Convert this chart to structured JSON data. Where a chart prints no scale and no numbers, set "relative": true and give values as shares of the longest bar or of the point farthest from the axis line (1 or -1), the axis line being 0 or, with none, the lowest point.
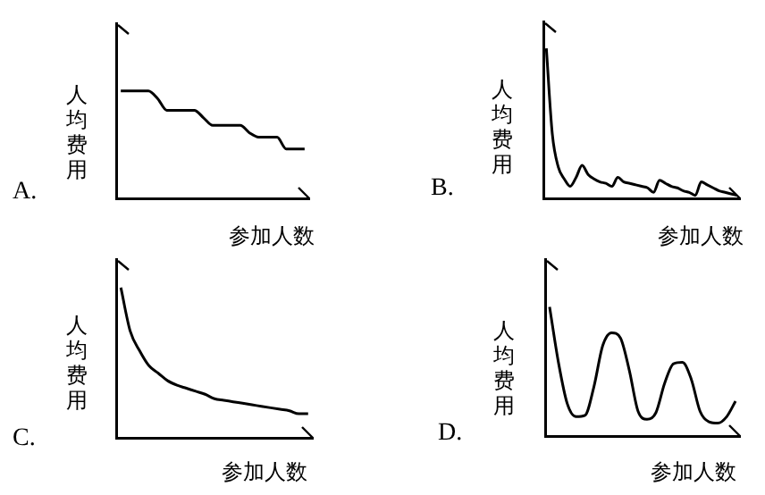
{
  "chart_data": [
    {
      "type": "line",
      "xlabel": "参加人数",
      "ylabel": "人均费用",
      "annotations": [
        "A."
      ],
      "relative": true,
      "color": "#000000",
      "categories": [
        null,
        null,
        null,
        null,
        null,
        null,
        null,
        null,
        null,
        null,
        null,
        null,
        null,
        null,
        null,
        null,
        null,
        null,
        null,
        null,
        null
      ],
      "values": [
        1,
        1,
        1,
        1,
        0.93,
        0.82,
        0.82,
        0.82,
        0.82,
        0.75,
        0.68,
        0.68,
        0.68,
        0.68,
        0.61,
        0.57,
        0.57,
        0.57,
        0.46,
        0.46,
        0.46
      ]
    },
    {
      "type": "line",
      "xlabel": "参加人数",
      "ylabel": "人均费用",
      "annotations": [
        "B."
      ],
      "relative": true,
      "color": "#000000",
      "categories": [
        null,
        null,
        null,
        null,
        null,
        null,
        null,
        null,
        null,
        null,
        null,
        null,
        null,
        null,
        null,
        null,
        null,
        null,
        null,
        null,
        null,
        null,
        null,
        null,
        null,
        null,
        null,
        null,
        null,
        null,
        null,
        null,
        null
      ],
      "values": [
        1,
        0.43,
        0.21,
        0.13,
        0.08,
        0.14,
        0.22,
        0.16,
        0.13,
        0.11,
        0.1,
        0.08,
        0.14,
        0.11,
        0.1,
        0.09,
        0.08,
        0.07,
        0.04,
        0.12,
        0.1,
        0.08,
        0.07,
        0.05,
        0.04,
        0.02,
        0.11,
        0.09,
        0.07,
        0.05,
        0.04,
        0.03,
        0.02
      ]
    },
    {
      "type": "line",
      "xlabel": "参加人数",
      "ylabel": "人均费用",
      "annotations": [
        "C."
      ],
      "relative": true,
      "color": "#000000",
      "categories": [
        null,
        null,
        null,
        null,
        null,
        null,
        null,
        null,
        null,
        null,
        null,
        null,
        null,
        null,
        null,
        null,
        null,
        null,
        null,
        null,
        null
      ],
      "values": [
        1,
        0.71,
        0.58,
        0.48,
        0.43,
        0.38,
        0.35,
        0.33,
        0.31,
        0.29,
        0.26,
        0.25,
        0.24,
        0.23,
        0.22,
        0.21,
        0.2,
        0.19,
        0.18,
        0.16,
        0.16
      ]
    },
    {
      "type": "line",
      "xlabel": "参加人数",
      "ylabel": "人均费用",
      "annotations": [
        "D."
      ],
      "relative": true,
      "color": "#000000",
      "categories": [
        null,
        null,
        null,
        null,
        null,
        null,
        null,
        null,
        null,
        null,
        null,
        null,
        null,
        null,
        null,
        null,
        null,
        null,
        null,
        null,
        null,
        null
      ],
      "values": [
        1,
        0.57,
        0.25,
        0.15,
        0.16,
        0.38,
        0.7,
        0.8,
        0.76,
        0.51,
        0.19,
        0.13,
        0.18,
        0.41,
        0.56,
        0.57,
        0.44,
        0.19,
        0.11,
        0.1,
        0.15,
        0.27
      ]
    }
  ]
}
